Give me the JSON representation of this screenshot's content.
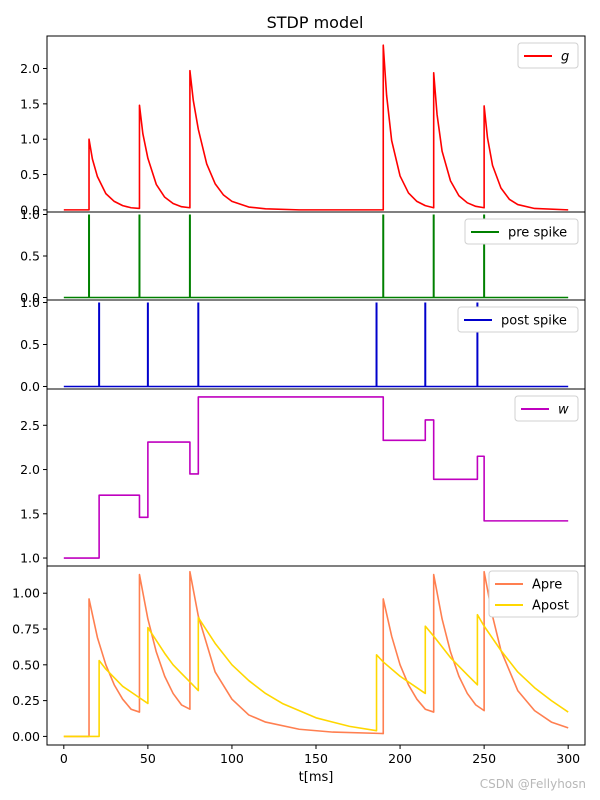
{
  "chart_data": {
    "type": "line",
    "title": "STDP model",
    "xlabel": "t[ms]",
    "xlim": [
      -10,
      310
    ],
    "xticks": [
      0,
      50,
      100,
      150,
      200,
      250,
      300
    ],
    "pre_spike_times": [
      15,
      45,
      75,
      190,
      220,
      250
    ],
    "post_spike_times": [
      21,
      50,
      80,
      186,
      215,
      246
    ],
    "panels": [
      {
        "name": "g",
        "ylim": [
          -0.03,
          2.46
        ],
        "yticks": [
          0.0,
          0.5,
          1.0,
          1.5,
          2.0
        ],
        "yticklabels": [
          "0.0",
          "0.5",
          "1.0",
          "1.5",
          "2.0"
        ],
        "series": [
          {
            "name": "g",
            "label": "g",
            "italic": true,
            "color": "#ff0000",
            "points": [
              [
                0,
                0
              ],
              [
                15,
                0
              ],
              [
                15,
                1.0
              ],
              [
                17,
                0.72
              ],
              [
                20,
                0.47
              ],
              [
                25,
                0.23
              ],
              [
                30,
                0.12
              ],
              [
                35,
                0.06
              ],
              [
                40,
                0.03
              ],
              [
                45,
                0.02
              ],
              [
                45,
                1.48
              ],
              [
                47,
                1.08
              ],
              [
                50,
                0.73
              ],
              [
                55,
                0.36
              ],
              [
                60,
                0.18
              ],
              [
                65,
                0.09
              ],
              [
                70,
                0.045
              ],
              [
                75,
                0.03
              ],
              [
                75,
                1.97
              ],
              [
                77,
                1.55
              ],
              [
                80,
                1.14
              ],
              [
                85,
                0.65
              ],
              [
                90,
                0.37
              ],
              [
                95,
                0.21
              ],
              [
                100,
                0.12
              ],
              [
                110,
                0.04
              ],
              [
                120,
                0.015
              ],
              [
                140,
                0.0
              ],
              [
                190,
                0.0
              ],
              [
                190,
                2.33
              ],
              [
                192,
                1.62
              ],
              [
                195,
                0.98
              ],
              [
                200,
                0.48
              ],
              [
                205,
                0.24
              ],
              [
                210,
                0.12
              ],
              [
                215,
                0.06
              ],
              [
                220,
                0.03
              ],
              [
                220,
                1.94
              ],
              [
                222,
                1.35
              ],
              [
                225,
                0.83
              ],
              [
                230,
                0.41
              ],
              [
                235,
                0.2
              ],
              [
                240,
                0.1
              ],
              [
                245,
                0.05
              ],
              [
                250,
                0.03
              ],
              [
                250,
                1.47
              ],
              [
                252,
                1.02
              ],
              [
                255,
                0.63
              ],
              [
                260,
                0.31
              ],
              [
                265,
                0.15
              ],
              [
                270,
                0.075
              ],
              [
                280,
                0.02
              ],
              [
                300,
                0.0
              ]
            ]
          }
        ]
      },
      {
        "name": "pre",
        "ylim": [
          -0.03,
          1.03
        ],
        "yticks": [
          0.0,
          0.5,
          1.0
        ],
        "yticklabels": [
          "0.0",
          "0.5",
          "1.0"
        ],
        "series": [
          {
            "name": "pre spike",
            "label": "pre spike",
            "italic": false,
            "color": "#008000",
            "spikes_key": "pre_spike_times"
          }
        ]
      },
      {
        "name": "post",
        "ylim": [
          -0.03,
          1.03
        ],
        "yticks": [
          0.0,
          0.5,
          1.0
        ],
        "yticklabels": [
          "0.0",
          "0.5",
          "1.0"
        ],
        "series": [
          {
            "name": "post spike",
            "label": "post spike",
            "italic": false,
            "color": "#0000cc",
            "spikes_key": "post_spike_times"
          }
        ]
      },
      {
        "name": "w",
        "ylim": [
          0.91,
          2.91
        ],
        "yticks": [
          1.0,
          1.5,
          2.0,
          2.5
        ],
        "yticklabels": [
          "1.0",
          "1.5",
          "2.0",
          "2.5"
        ],
        "series": [
          {
            "name": "w",
            "label": "w",
            "italic": true,
            "color": "#bf00bf",
            "step": true,
            "points": [
              [
                0,
                1.0
              ],
              [
                21,
                1.0
              ],
              [
                21,
                1.71
              ],
              [
                45,
                1.71
              ],
              [
                45,
                1.46
              ],
              [
                50,
                1.46
              ],
              [
                50,
                2.31
              ],
              [
                75,
                2.31
              ],
              [
                75,
                1.95
              ],
              [
                80,
                1.95
              ],
              [
                80,
                2.82
              ],
              [
                190,
                2.82
              ],
              [
                190,
                2.33
              ],
              [
                215,
                2.33
              ],
              [
                215,
                2.56
              ],
              [
                220,
                2.56
              ],
              [
                220,
                1.89
              ],
              [
                246,
                1.89
              ],
              [
                246,
                2.15
              ],
              [
                250,
                2.15
              ],
              [
                250,
                1.42
              ],
              [
                300,
                1.42
              ]
            ]
          }
        ]
      },
      {
        "name": "trace",
        "ylim": [
          -0.06,
          1.19
        ],
        "yticks": [
          0.0,
          0.25,
          0.5,
          0.75,
          1.0
        ],
        "yticklabels": [
          "0.00",
          "0.25",
          "0.50",
          "0.75",
          "1.00"
        ],
        "series": [
          {
            "name": "Apre",
            "label": "Apre",
            "italic": false,
            "color": "#ff7f50",
            "points": [
              [
                0,
                0
              ],
              [
                15,
                0
              ],
              [
                15,
                0.96
              ],
              [
                20,
                0.69
              ],
              [
                25,
                0.5
              ],
              [
                30,
                0.36
              ],
              [
                35,
                0.26
              ],
              [
                40,
                0.19
              ],
              [
                45,
                0.17
              ],
              [
                45,
                1.13
              ],
              [
                50,
                0.82
              ],
              [
                55,
                0.59
              ],
              [
                60,
                0.42
              ],
              [
                65,
                0.3
              ],
              [
                70,
                0.22
              ],
              [
                75,
                0.19
              ],
              [
                75,
                1.15
              ],
              [
                80,
                0.84
              ],
              [
                90,
                0.45
              ],
              [
                100,
                0.26
              ],
              [
                110,
                0.15
              ],
              [
                120,
                0.1
              ],
              [
                140,
                0.05
              ],
              [
                160,
                0.03
              ],
              [
                190,
                0.02
              ],
              [
                190,
                0.96
              ],
              [
                195,
                0.7
              ],
              [
                200,
                0.5
              ],
              [
                205,
                0.36
              ],
              [
                210,
                0.26
              ],
              [
                215,
                0.19
              ],
              [
                220,
                0.17
              ],
              [
                220,
                1.13
              ],
              [
                225,
                0.82
              ],
              [
                230,
                0.59
              ],
              [
                235,
                0.42
              ],
              [
                240,
                0.3
              ],
              [
                245,
                0.22
              ],
              [
                250,
                0.18
              ],
              [
                250,
                1.15
              ],
              [
                255,
                0.84
              ],
              [
                260,
                0.6
              ],
              [
                270,
                0.32
              ],
              [
                280,
                0.18
              ],
              [
                290,
                0.1
              ],
              [
                300,
                0.06
              ]
            ]
          },
          {
            "name": "Apost",
            "label": "Apost",
            "italic": false,
            "color": "#ffd700",
            "points": [
              [
                0,
                0
              ],
              [
                21,
                0
              ],
              [
                21,
                0.53
              ],
              [
                25,
                0.47
              ],
              [
                30,
                0.41
              ],
              [
                35,
                0.35
              ],
              [
                40,
                0.31
              ],
              [
                45,
                0.27
              ],
              [
                50,
                0.23
              ],
              [
                50,
                0.76
              ],
              [
                55,
                0.67
              ],
              [
                60,
                0.58
              ],
              [
                65,
                0.5
              ],
              [
                70,
                0.44
              ],
              [
                75,
                0.38
              ],
              [
                80,
                0.32
              ],
              [
                80,
                0.83
              ],
              [
                90,
                0.65
              ],
              [
                100,
                0.5
              ],
              [
                110,
                0.39
              ],
              [
                120,
                0.3
              ],
              [
                130,
                0.23
              ],
              [
                140,
                0.18
              ],
              [
                150,
                0.13
              ],
              [
                160,
                0.1
              ],
              [
                170,
                0.07
              ],
              [
                186,
                0.04
              ],
              [
                186,
                0.57
              ],
              [
                190,
                0.52
              ],
              [
                200,
                0.42
              ],
              [
                210,
                0.34
              ],
              [
                215,
                0.3
              ],
              [
                215,
                0.77
              ],
              [
                220,
                0.7
              ],
              [
                230,
                0.55
              ],
              [
                240,
                0.43
              ],
              [
                246,
                0.36
              ],
              [
                246,
                0.85
              ],
              [
                250,
                0.77
              ],
              [
                260,
                0.6
              ],
              [
                270,
                0.45
              ],
              [
                280,
                0.34
              ],
              [
                290,
                0.25
              ],
              [
                300,
                0.17
              ]
            ]
          }
        ]
      }
    ]
  },
  "watermark": "CSDN @Fellyhosn"
}
